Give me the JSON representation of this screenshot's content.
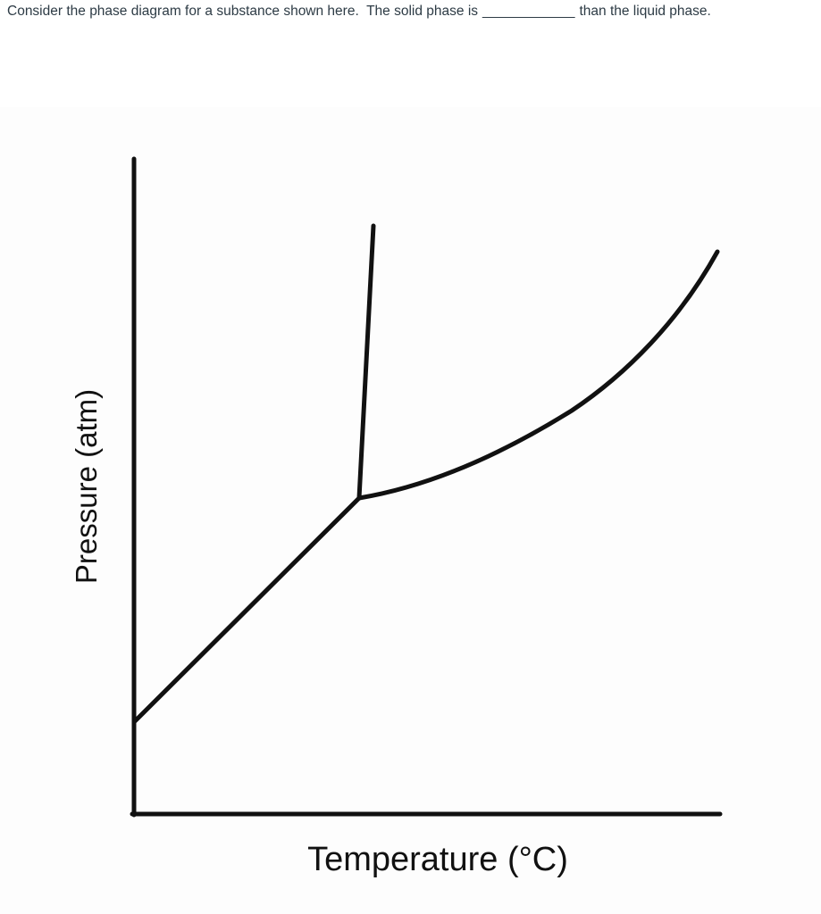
{
  "question": {
    "before": "Consider the phase diagram for a substance shown here.  The solid phase is",
    "blank": "____________",
    "after": "than the liquid phase."
  },
  "diagram": {
    "y_label": "Pressure (atm)",
    "x_label": "Temperature (°C)"
  }
}
